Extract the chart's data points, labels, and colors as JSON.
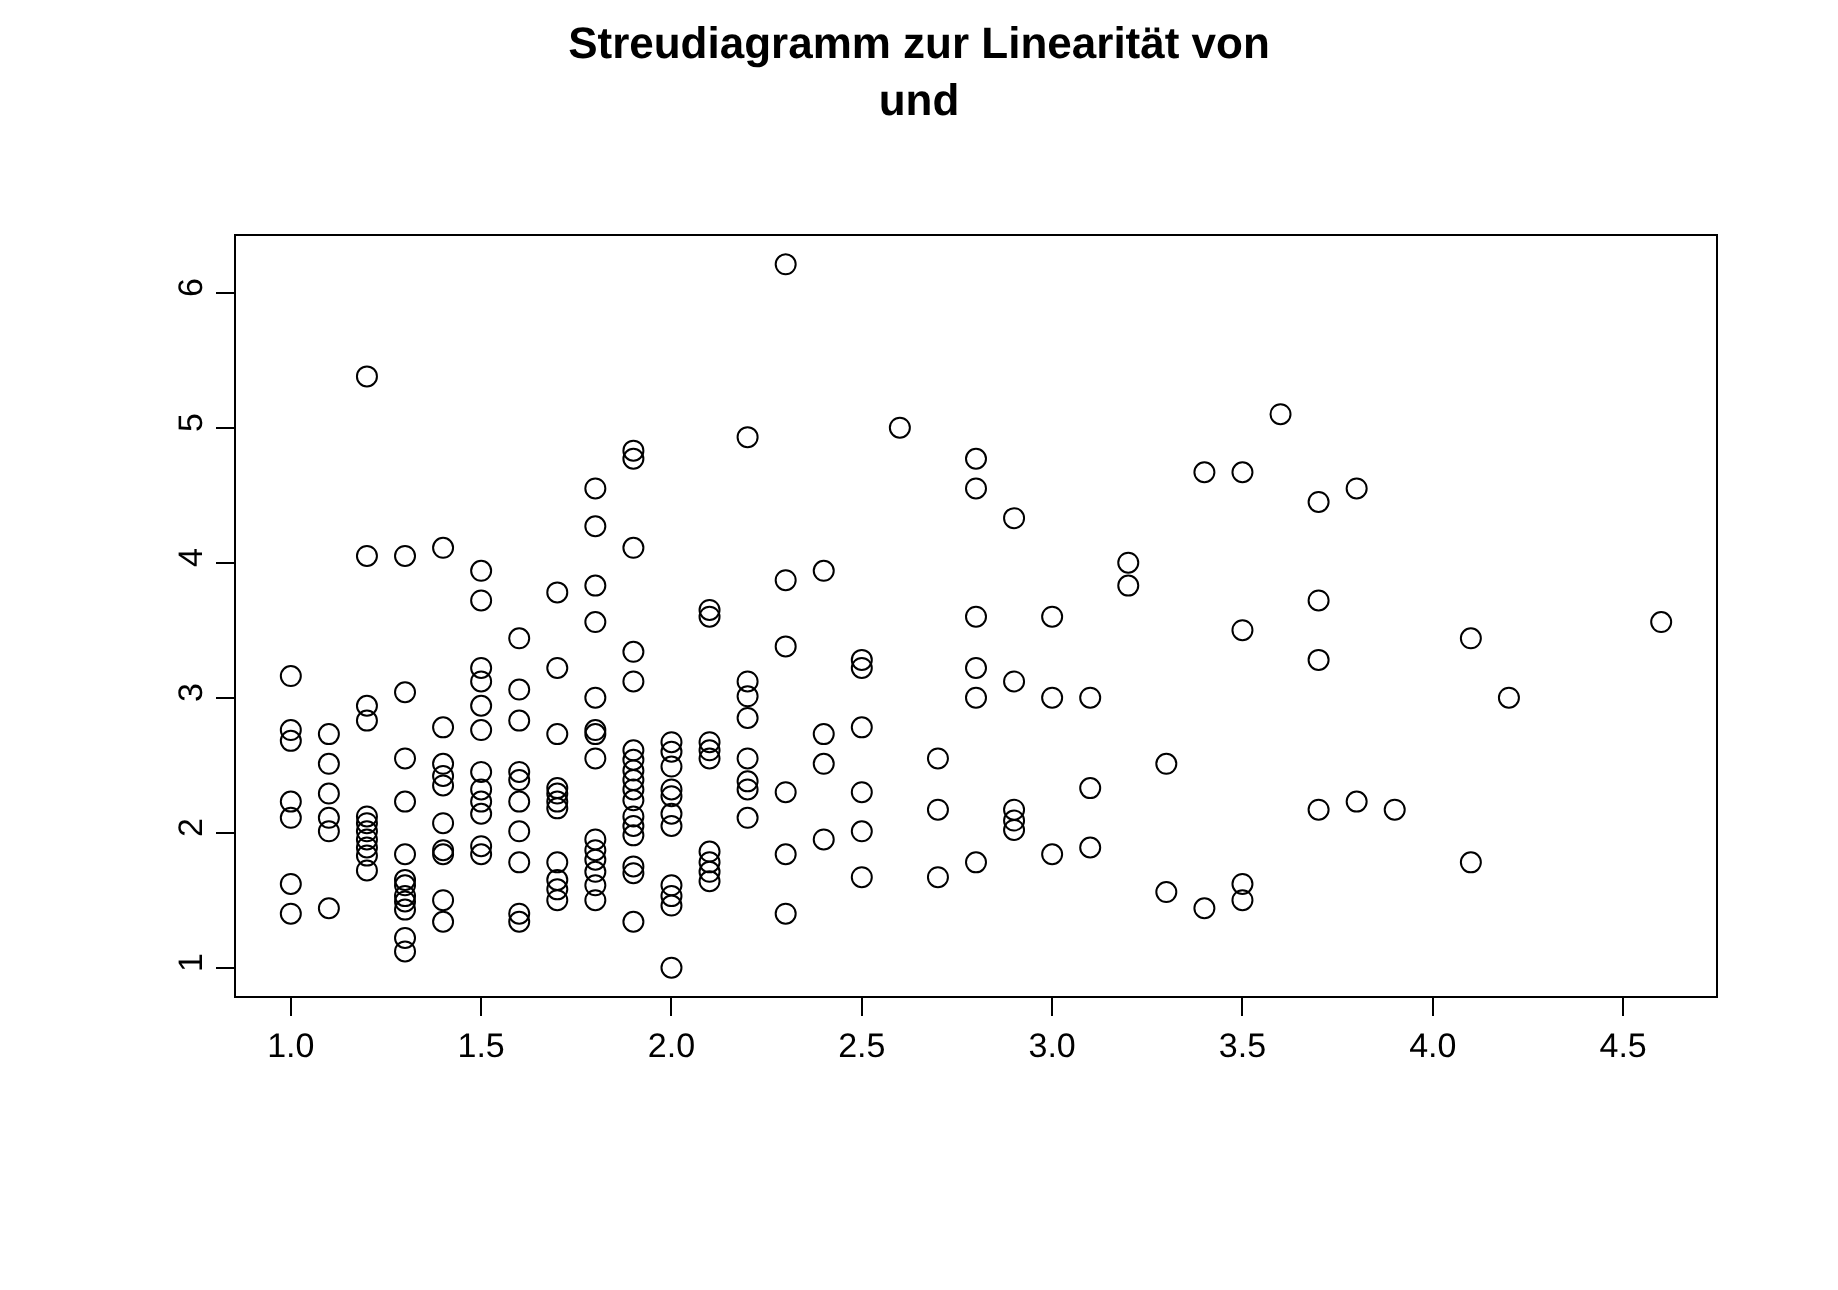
{
  "chart_data": {
    "type": "scatter",
    "title": "Streudiagramm zur Linearität von\nund",
    "x": [
      1.0,
      1.0,
      1.0,
      1.0,
      1.0,
      1.0,
      1.0,
      1.1,
      1.1,
      1.1,
      1.1,
      1.1,
      1.1,
      1.2,
      1.2,
      1.2,
      1.2,
      1.2,
      1.2,
      1.2,
      1.2,
      1.2,
      1.2,
      1.2,
      1.3,
      1.3,
      1.3,
      1.3,
      1.3,
      1.3,
      1.3,
      1.3,
      1.3,
      1.3,
      1.3,
      1.3,
      1.4,
      1.4,
      1.4,
      1.4,
      1.4,
      1.4,
      1.4,
      1.4,
      1.4,
      1.4,
      1.5,
      1.5,
      1.5,
      1.5,
      1.5,
      1.5,
      1.5,
      1.5,
      1.5,
      1.5,
      1.5,
      1.5,
      1.6,
      1.6,
      1.6,
      1.6,
      1.6,
      1.6,
      1.6,
      1.6,
      1.6,
      1.6,
      1.7,
      1.7,
      1.7,
      1.7,
      1.7,
      1.7,
      1.7,
      1.7,
      1.7,
      1.7,
      1.7,
      1.8,
      1.8,
      1.8,
      1.8,
      1.8,
      1.8,
      1.8,
      1.8,
      1.8,
      1.8,
      1.8,
      1.8,
      1.8,
      1.8,
      1.9,
      1.9,
      1.9,
      1.9,
      1.9,
      1.9,
      1.9,
      1.9,
      1.9,
      1.9,
      1.9,
      1.9,
      1.9,
      1.9,
      1.9,
      1.9,
      1.9,
      2.0,
      2.0,
      2.0,
      2.0,
      2.0,
      2.0,
      2.0,
      2.0,
      2.0,
      2.0,
      2.0,
      2.1,
      2.1,
      2.1,
      2.1,
      2.1,
      2.1,
      2.1,
      2.1,
      2.1,
      2.2,
      2.2,
      2.2,
      2.2,
      2.2,
      2.2,
      2.2,
      2.2,
      2.3,
      2.3,
      2.3,
      2.3,
      2.3,
      2.3,
      2.4,
      2.4,
      2.4,
      2.4,
      2.5,
      2.5,
      2.5,
      2.5,
      2.5,
      2.5,
      2.6,
      2.7,
      2.7,
      2.7,
      2.8,
      2.8,
      2.8,
      2.8,
      2.8,
      2.8,
      2.9,
      2.9,
      2.9,
      2.9,
      2.9,
      3.0,
      3.0,
      3.0,
      3.1,
      3.1,
      3.1,
      3.2,
      3.2,
      3.3,
      3.3,
      3.4,
      3.4,
      3.5,
      3.5,
      3.5,
      3.5,
      3.6,
      3.7,
      3.7,
      3.7,
      3.7,
      3.8,
      3.8,
      3.9,
      4.1,
      4.1,
      4.2,
      4.6
    ],
    "values": [
      3.16,
      2.76,
      2.68,
      2.23,
      2.11,
      1.62,
      1.4,
      2.73,
      2.51,
      2.29,
      2.11,
      2.01,
      1.44,
      5.38,
      4.05,
      2.94,
      2.83,
      2.12,
      2.07,
      2.01,
      1.95,
      1.89,
      1.83,
      1.72,
      4.05,
      3.04,
      2.55,
      2.23,
      1.84,
      1.65,
      1.61,
      1.53,
      1.49,
      1.43,
      1.22,
      1.12,
      4.11,
      2.78,
      2.51,
      2.42,
      2.35,
      2.07,
      1.87,
      1.84,
      1.5,
      1.34,
      3.94,
      3.72,
      3.22,
      3.12,
      2.94,
      2.76,
      2.45,
      2.32,
      2.23,
      2.14,
      1.9,
      1.84,
      3.44,
      3.06,
      2.83,
      2.45,
      2.39,
      2.23,
      2.01,
      1.78,
      1.4,
      1.34,
      3.78,
      3.22,
      2.73,
      2.33,
      2.29,
      2.23,
      2.18,
      1.78,
      1.65,
      1.58,
      1.5,
      4.55,
      4.27,
      3.83,
      3.56,
      3.0,
      2.76,
      2.73,
      2.55,
      1.95,
      1.87,
      1.8,
      1.71,
      1.61,
      1.5,
      4.83,
      4.77,
      4.11,
      3.34,
      3.12,
      2.61,
      2.54,
      2.46,
      2.39,
      2.32,
      2.24,
      2.12,
      2.05,
      1.98,
      1.75,
      1.7,
      1.34,
      2.67,
      2.6,
      2.49,
      2.32,
      2.27,
      2.14,
      2.05,
      1.61,
      1.53,
      1.46,
      1.0,
      3.65,
      3.6,
      2.67,
      2.61,
      2.55,
      1.86,
      1.78,
      1.71,
      1.64,
      4.93,
      3.12,
      3.01,
      2.85,
      2.55,
      2.38,
      2.32,
      2.11,
      6.21,
      3.87,
      3.38,
      2.3,
      1.84,
      1.4,
      3.94,
      2.73,
      2.51,
      1.95,
      3.28,
      3.22,
      2.78,
      2.3,
      2.01,
      1.67,
      5.0,
      2.55,
      2.17,
      1.67,
      4.77,
      4.55,
      3.6,
      3.22,
      3.0,
      1.78,
      4.33,
      3.12,
      2.17,
      2.09,
      2.02,
      3.6,
      3.0,
      1.84,
      3.0,
      2.33,
      1.89,
      4.0,
      3.83,
      2.51,
      1.56,
      4.67,
      1.44,
      4.67,
      3.5,
      1.62,
      1.5,
      5.1,
      4.45,
      3.72,
      3.28,
      2.17,
      4.55,
      2.23,
      2.17,
      3.44,
      1.78,
      3.0,
      3.56
    ],
    "color": "#000000",
    "marker": "circle",
    "xlim": [
      0.856,
      4.744
    ],
    "xticks": [
      {
        "value": 1.0,
        "label": "1.0"
      },
      {
        "value": 1.5,
        "label": "1.5"
      },
      {
        "value": 2.0,
        "label": "2.0"
      },
      {
        "value": 2.5,
        "label": "2.5"
      },
      {
        "value": 3.0,
        "label": "3.0"
      },
      {
        "value": 3.5,
        "label": "3.5"
      },
      {
        "value": 4.0,
        "label": "4.0"
      },
      {
        "value": 4.5,
        "label": "4.5"
      }
    ],
    "ylim": [
      0.79,
      6.42
    ],
    "yticks": [
      1,
      2,
      3,
      4,
      5,
      6
    ]
  }
}
